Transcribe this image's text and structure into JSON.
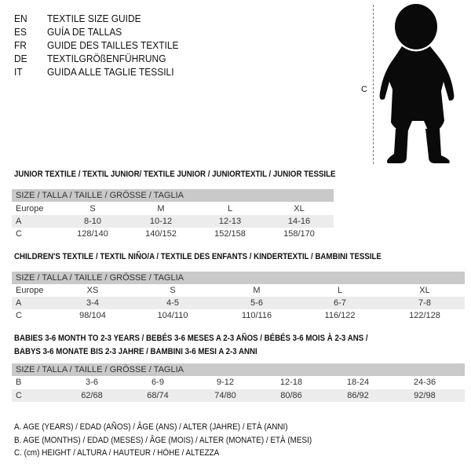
{
  "header": {
    "lines": [
      {
        "code": "EN",
        "text": "TEXTILE SIZE GUIDE"
      },
      {
        "code": "ES",
        "text": "GUÍA DE TALLAS"
      },
      {
        "code": "FR",
        "text": "GUIDE DES TAILLES TEXTILE"
      },
      {
        "code": "DE",
        "text": "TEXTILGRÖßENFÜHRUNG"
      },
      {
        "code": "IT",
        "text": "GUIDA ALLE TAGLIE TESSILI"
      }
    ]
  },
  "figure": {
    "measure_label": "C",
    "icon": "baby-silhouette"
  },
  "junior": {
    "title": "JUNIOR TEXTILE / TEXTIL JUNIOR/ TEXTILE JUNIOR / JUNIORTEXTIL / JUNIOR TESSILE",
    "header": "SIZE / TALLA / TAILLE / GRÖSSE / TAGLIA",
    "rows": [
      {
        "label": "Europe",
        "values": [
          "S",
          "M",
          "L",
          "XL"
        ]
      },
      {
        "label": "A",
        "values": [
          "8-10",
          "10-12",
          "12-13",
          "14-16"
        ]
      },
      {
        "label": "C",
        "values": [
          "128/140",
          "140/152",
          "152/158",
          "158/170"
        ]
      }
    ]
  },
  "children": {
    "title": "CHILDREN'S TEXTILE / TEXTIL NIÑO/A / TEXTILE DES ENFANTS / KINDERTEXTIL / BAMBINI TESSILE",
    "header": "SIZE / TALLA / TAILLE / GRÖSSE / TAGLIA",
    "rows": [
      {
        "label": "Europe",
        "values": [
          "XS",
          "S",
          "M",
          "L",
          "XL"
        ]
      },
      {
        "label": "A",
        "values": [
          "3-4",
          "4-5",
          "5-6",
          "6-7",
          "7-8"
        ]
      },
      {
        "label": "C",
        "values": [
          "98/104",
          "104/110",
          "110/116",
          "116/122",
          "122/128"
        ]
      }
    ]
  },
  "babies": {
    "title_line1": "BABIES 3-6 MONTH TO 2-3 YEARS / BEBÉS 3-6 MESES A 2-3 AÑOS / BÉBÉS 3-6 MOIS À 2-3 ANS /",
    "title_line2": "BABYS 3-6 MONATE BIS 2-3 JAHRE / BAMBINI 3-6 MESI A 2-3 ANNI",
    "header": "SIZE / TALLA / TAILLE / GRÖSSE / TAGLIA",
    "rows": [
      {
        "label": "B",
        "values": [
          "3-6",
          "6-9",
          "9-12",
          "12-18",
          "18-24",
          "24-36"
        ]
      },
      {
        "label": "C",
        "values": [
          "62/68",
          "68/74",
          "74/80",
          "80/86",
          "86/92",
          "92/98"
        ]
      }
    ]
  },
  "legend": [
    "A. AGE (YEARS) / EDAD (AÑOS) / ÂGE (ANS) / ALTER (JAHRE) / ETÀ (ANNI)",
    "B. AGE (MONTHS) / EDAD (MESES) / ÂGE (MOIS) / ALTER (MONATE) / ETÀ (MESI)",
    "C. (cm) HEIGHT / ALTURA / HAUTEUR / HÖHE / ALTEZZA"
  ]
}
